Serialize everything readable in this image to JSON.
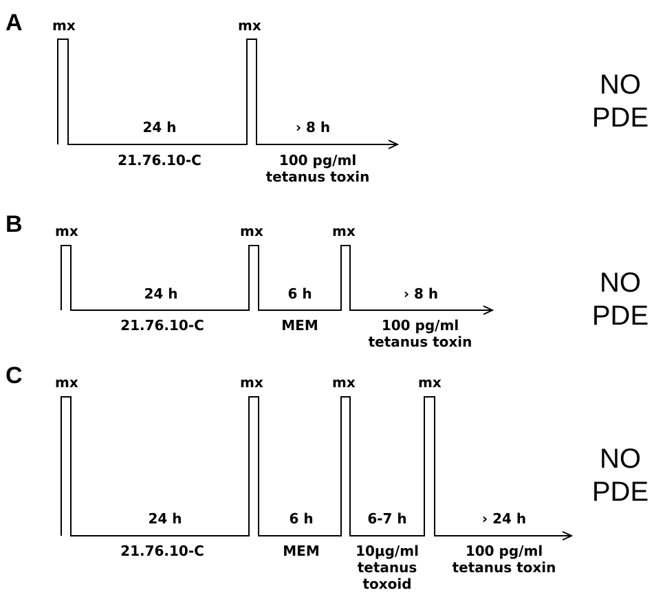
{
  "panels": {
    "A": {
      "letter": "A",
      "mx": [
        "mx",
        "mx"
      ],
      "durations": [
        "24 h",
        "› 8 h"
      ],
      "treatments": [
        [
          "21.76.10-C"
        ],
        [
          "100 pg/ml",
          "tetanus toxin"
        ]
      ],
      "result": [
        "NO",
        "PDE"
      ]
    },
    "B": {
      "letter": "B",
      "mx": [
        "mx",
        "mx",
        "mx"
      ],
      "durations": [
        "24 h",
        "6 h",
        "› 8 h"
      ],
      "treatments": [
        [
          "21.76.10-C"
        ],
        [
          "MEM"
        ],
        [
          "100 pg/ml",
          "tetanus toxin"
        ]
      ],
      "result": [
        "NO",
        "PDE"
      ]
    },
    "C": {
      "letter": "C",
      "mx": [
        "mx",
        "mx",
        "mx",
        "mx"
      ],
      "durations": [
        "24 h",
        "6 h",
        "6-7 h",
        "› 24 h"
      ],
      "treatments": [
        [
          "21.76.10-C"
        ],
        [
          "MEM"
        ],
        [
          "10μg/ml",
          "tetanus",
          "toxoid"
        ],
        [
          "100 pg/ml",
          "tetanus toxin"
        ]
      ],
      "result": [
        "NO",
        "PDE"
      ]
    }
  }
}
